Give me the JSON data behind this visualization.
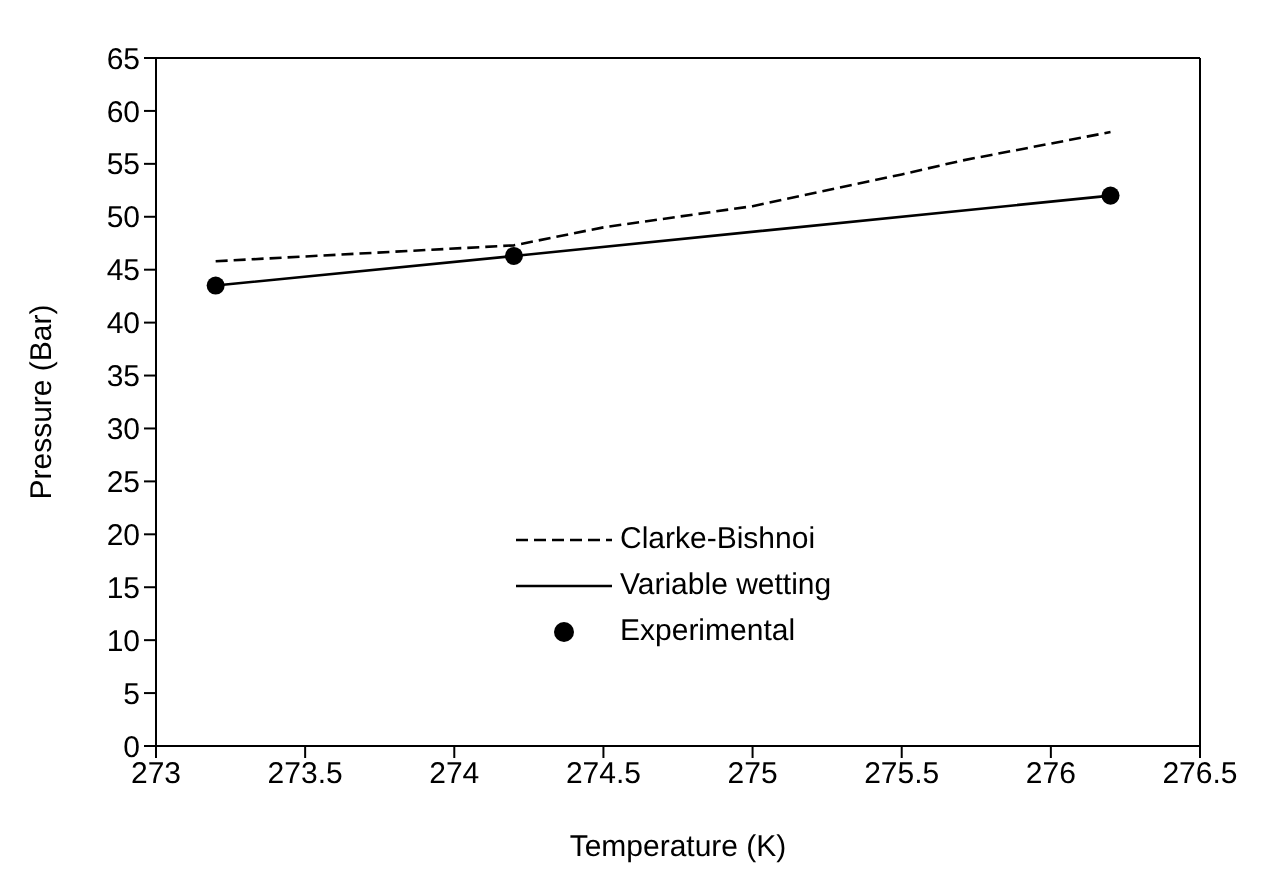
{
  "chart_data": {
    "type": "line",
    "xlabel": "Temperature (K)",
    "ylabel": "Pressure (Bar)",
    "xlim": [
      273,
      276.5
    ],
    "xticks": [
      273,
      273.5,
      274,
      274.5,
      275,
      275.5,
      276,
      276.5
    ],
    "ylim": [
      0,
      65
    ],
    "yticks": [
      0,
      5,
      10,
      15,
      20,
      25,
      30,
      35,
      40,
      45,
      50,
      55,
      60,
      65
    ],
    "grid": false,
    "legend": "bottom",
    "series": [
      {
        "name": "Clarke-Bishnoi",
        "line_style": "dashed",
        "color": "#000000",
        "x": [
          273.2,
          274.2,
          274.5,
          275,
          275.5,
          275.7,
          276.2
        ],
        "values": [
          45.8,
          47.3,
          49,
          51,
          54,
          55.3,
          58
        ]
      },
      {
        "name": "Variable wetting",
        "line_style": "solid",
        "color": "#000000",
        "x": [
          273.2,
          274.2,
          276.2
        ],
        "values": [
          43.5,
          46.3,
          52
        ]
      },
      {
        "name": "Experimental",
        "type": "scatter",
        "marker": "circle",
        "color": "#000000",
        "x": [
          273.2,
          274.2,
          276.2
        ],
        "values": [
          43.5,
          46.3,
          52
        ]
      }
    ]
  }
}
